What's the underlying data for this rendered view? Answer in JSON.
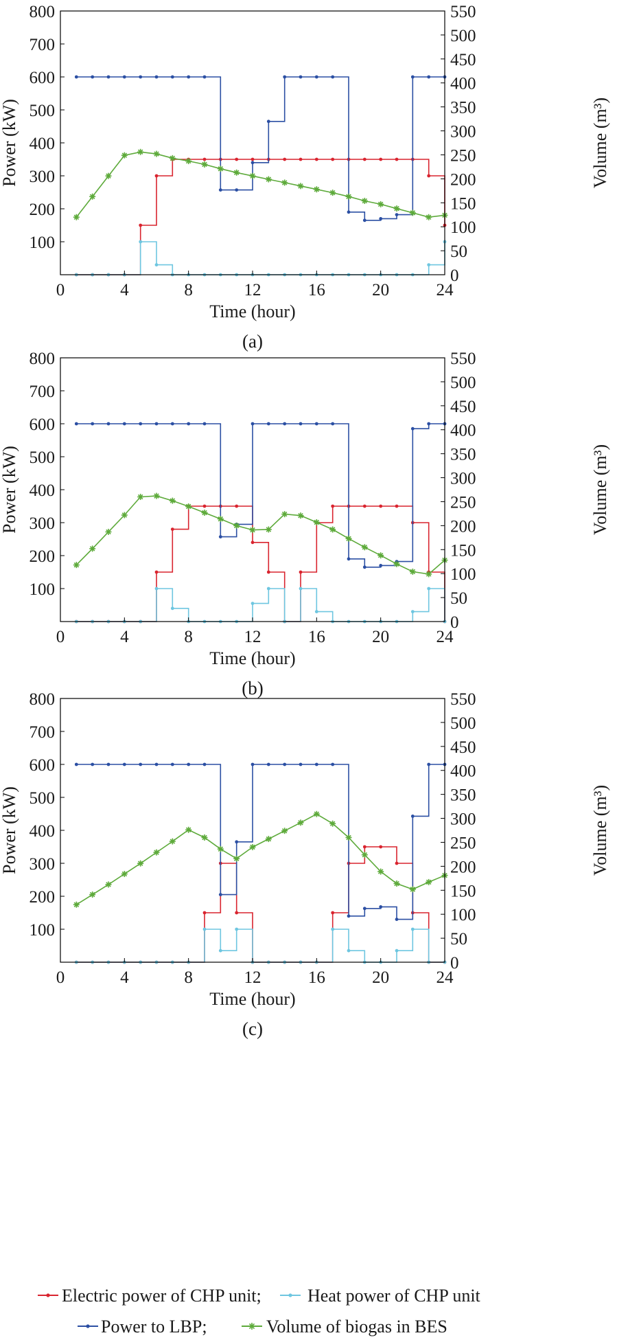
{
  "colors": {
    "electric_chp": "#d9242f",
    "heat_chp": "#6ec6e0",
    "lbp": "#2b4fa3",
    "biogas": "#5daa3a"
  },
  "legend": {
    "electric_chp": "Electric power of CHP unit;",
    "heat_chp": "Heat power of CHP unit",
    "lbp": "Power to LBP;",
    "biogas": "Volume of biogas in BES"
  },
  "chart_data": [
    {
      "type": "line",
      "caption": "(a)",
      "xlabel": "Time (hour)",
      "ylabel": "Power (kW)",
      "y2label": "Volume (m³)",
      "xlim": [
        0,
        24
      ],
      "ylim": [
        0,
        800
      ],
      "y2lim": [
        0,
        550
      ],
      "xticks": [
        0,
        4,
        8,
        12,
        16,
        20,
        24
      ],
      "yticks": [
        100,
        200,
        300,
        400,
        500,
        600,
        700,
        800
      ],
      "y2ticks": [
        0,
        50,
        100,
        150,
        200,
        250,
        300,
        350,
        400,
        450,
        500,
        550
      ],
      "x": [
        1,
        2,
        3,
        4,
        5,
        6,
        7,
        8,
        9,
        10,
        11,
        12,
        13,
        14,
        15,
        16,
        17,
        18,
        19,
        20,
        21,
        22,
        23,
        24
      ],
      "series": [
        {
          "name": "Electric power of CHP unit",
          "axis": "left",
          "style": "step",
          "values": [
            0,
            0,
            0,
            0,
            150,
            300,
            350,
            350,
            350,
            350,
            350,
            350,
            350,
            350,
            350,
            350,
            350,
            350,
            350,
            350,
            350,
            350,
            300,
            150
          ]
        },
        {
          "name": "Heat power of CHP unit",
          "axis": "left",
          "style": "step",
          "values": [
            0,
            0,
            0,
            0,
            100,
            30,
            0,
            0,
            0,
            0,
            0,
            0,
            0,
            0,
            0,
            0,
            0,
            0,
            0,
            0,
            0,
            0,
            30,
            100
          ]
        },
        {
          "name": "Power to LBP",
          "axis": "left",
          "style": "step",
          "values": [
            600,
            600,
            600,
            600,
            600,
            600,
            600,
            600,
            600,
            257,
            257,
            340,
            465,
            600,
            600,
            600,
            600,
            190,
            165,
            170,
            182,
            600,
            600,
            600
          ]
        },
        {
          "name": "Volume of biogas in BES",
          "axis": "right",
          "style": "line",
          "values": [
            120,
            163,
            206,
            249,
            256,
            252,
            243,
            237,
            230,
            221,
            213,
            206,
            199,
            192,
            185,
            178,
            171,
            163,
            154,
            147,
            138,
            129,
            120,
            124
          ]
        }
      ]
    },
    {
      "type": "line",
      "caption": "(b)",
      "xlabel": "Time (hour)",
      "ylabel": "Power (kW)",
      "y2label": "Volume (m³)",
      "xlim": [
        0,
        24
      ],
      "ylim": [
        0,
        800
      ],
      "y2lim": [
        0,
        550
      ],
      "xticks": [
        0,
        4,
        8,
        12,
        16,
        20,
        24
      ],
      "yticks": [
        100,
        200,
        300,
        400,
        500,
        600,
        700,
        800
      ],
      "y2ticks": [
        0,
        50,
        100,
        150,
        200,
        250,
        300,
        350,
        400,
        450,
        500,
        550
      ],
      "x": [
        1,
        2,
        3,
        4,
        5,
        6,
        7,
        8,
        9,
        10,
        11,
        12,
        13,
        14,
        15,
        16,
        17,
        18,
        19,
        20,
        21,
        22,
        23,
        24
      ],
      "series": [
        {
          "name": "Electric power of CHP unit",
          "axis": "left",
          "style": "step",
          "values": [
            0,
            0,
            0,
            0,
            0,
            150,
            280,
            350,
            350,
            350,
            350,
            240,
            150,
            0,
            150,
            300,
            350,
            350,
            350,
            350,
            350,
            300,
            150,
            0
          ]
        },
        {
          "name": "Heat power of CHP unit",
          "axis": "left",
          "style": "step",
          "values": [
            0,
            0,
            0,
            0,
            0,
            100,
            40,
            0,
            0,
            0,
            0,
            55,
            100,
            0,
            100,
            30,
            0,
            0,
            0,
            0,
            0,
            30,
            100,
            0
          ]
        },
        {
          "name": "Power to LBP",
          "axis": "left",
          "style": "step",
          "values": [
            600,
            600,
            600,
            600,
            600,
            600,
            600,
            600,
            600,
            257,
            295,
            600,
            600,
            600,
            600,
            600,
            600,
            190,
            165,
            170,
            182,
            585,
            600,
            600
          ]
        },
        {
          "name": "Volume of biogas in BES",
          "axis": "right",
          "style": "line",
          "values": [
            118,
            152,
            187,
            222,
            260,
            262,
            252,
            240,
            227,
            214,
            200,
            191,
            192,
            224,
            221,
            207,
            192,
            173,
            155,
            138,
            120,
            104,
            99,
            128
          ]
        }
      ]
    },
    {
      "type": "line",
      "caption": "(c)",
      "xlabel": "Time (hour)",
      "ylabel": "Power (kW)",
      "y2label": "Volume (m³)",
      "xlim": [
        0,
        24
      ],
      "ylim": [
        0,
        800
      ],
      "y2lim": [
        0,
        550
      ],
      "xticks": [
        0,
        4,
        8,
        12,
        16,
        20,
        24
      ],
      "yticks": [
        100,
        200,
        300,
        400,
        500,
        600,
        700,
        800
      ],
      "y2ticks": [
        0,
        50,
        100,
        150,
        200,
        250,
        300,
        350,
        400,
        450,
        500,
        550
      ],
      "x": [
        1,
        2,
        3,
        4,
        5,
        6,
        7,
        8,
        9,
        10,
        11,
        12,
        13,
        14,
        15,
        16,
        17,
        18,
        19,
        20,
        21,
        22,
        23,
        24
      ],
      "series": [
        {
          "name": "Electric power of CHP unit",
          "axis": "left",
          "style": "step",
          "values": [
            0,
            0,
            0,
            0,
            0,
            0,
            0,
            0,
            150,
            300,
            150,
            0,
            0,
            0,
            0,
            0,
            150,
            300,
            350,
            350,
            300,
            150,
            0,
            0
          ]
        },
        {
          "name": "Heat power of CHP unit",
          "axis": "left",
          "style": "step",
          "values": [
            0,
            0,
            0,
            0,
            0,
            0,
            0,
            0,
            100,
            35,
            100,
            0,
            0,
            0,
            0,
            0,
            100,
            35,
            0,
            0,
            35,
            100,
            0,
            0
          ]
        },
        {
          "name": "Power to LBP",
          "axis": "left",
          "style": "step",
          "values": [
            600,
            600,
            600,
            600,
            600,
            600,
            600,
            600,
            600,
            205,
            365,
            600,
            600,
            600,
            600,
            600,
            600,
            140,
            163,
            168,
            130,
            443,
            600,
            600
          ]
        },
        {
          "name": "Volume of biogas in BES",
          "axis": "right",
          "style": "line",
          "values": [
            120,
            141,
            162,
            184,
            206,
            229,
            252,
            276,
            260,
            236,
            216,
            240,
            257,
            274,
            291,
            309,
            289,
            260,
            224,
            189,
            164,
            152,
            167,
            181
          ]
        }
      ]
    }
  ]
}
